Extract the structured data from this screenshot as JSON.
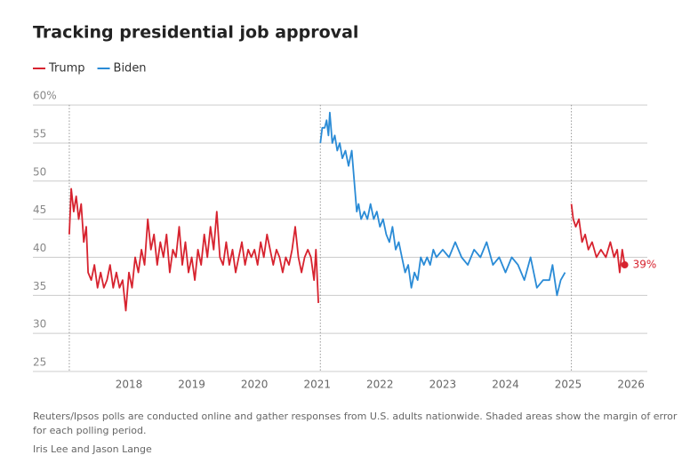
{
  "chart_data": {
    "type": "line",
    "title": "Tracking presidential job approval",
    "notes": [
      "Reuters/Ipsos polls are conducted online and gather responses from U.S. adults nationwide. Shaded areas show the margin of error",
      "for each polling period."
    ],
    "byline": "Iris Lee and Jason Lange",
    "xlim": [
      2016.47,
      2026.26
    ],
    "xticks": [
      2018,
      2019,
      2020,
      2021,
      2022,
      2023,
      2024,
      2025,
      2026
    ],
    "ylim": [
      25,
      62.7
    ],
    "yticks": [
      25,
      30,
      35,
      40,
      45,
      50,
      55,
      {
        "value": 60,
        "label": "60%"
      }
    ],
    "grid": true,
    "vlines": [
      2017.05,
      2021.05,
      2025.05
    ],
    "series": [
      {
        "name": "Trump",
        "color": "#d7232f",
        "x": [
          2017.05,
          2017.08,
          2017.12,
          2017.16,
          2017.2,
          2017.24,
          2017.28,
          2017.32,
          2017.35,
          2017.4,
          2017.45,
          2017.5,
          2017.55,
          2017.6,
          2017.65,
          2017.7,
          2017.75,
          2017.8,
          2017.85,
          2017.9,
          2017.95,
          2018.0,
          2018.05,
          2018.1,
          2018.15,
          2018.2,
          2018.25,
          2018.3,
          2018.35,
          2018.4,
          2018.45,
          2018.5,
          2018.55,
          2018.6,
          2018.65,
          2018.7,
          2018.75,
          2018.8,
          2018.85,
          2018.9,
          2018.95,
          2019.0,
          2019.05,
          2019.1,
          2019.15,
          2019.2,
          2019.25,
          2019.3,
          2019.35,
          2019.4,
          2019.45,
          2019.5,
          2019.55,
          2019.6,
          2019.65,
          2019.7,
          2019.75,
          2019.8,
          2019.85,
          2019.9,
          2019.95,
          2020.0,
          2020.05,
          2020.1,
          2020.15,
          2020.2,
          2020.25,
          2020.3,
          2020.35,
          2020.4,
          2020.45,
          2020.5,
          2020.55,
          2020.6,
          2020.65,
          2020.7,
          2020.75,
          2020.8,
          2020.85,
          2020.9,
          2020.95,
          2020.98,
          2021.02,
          null,
          2025.05,
          2025.08,
          2025.12,
          2025.17,
          2025.22,
          2025.27,
          2025.32,
          2025.38,
          2025.45,
          2025.52,
          2025.6,
          2025.67,
          2025.73,
          2025.78,
          2025.82,
          2025.86,
          2025.9
        ],
        "values": [
          43,
          49,
          46,
          48,
          45,
          47,
          42,
          44,
          38,
          37,
          39,
          36,
          38,
          36,
          37,
          39,
          36,
          38,
          36,
          37,
          33,
          38,
          36,
          40,
          38,
          41,
          39,
          45,
          41,
          43,
          39,
          42,
          40,
          43,
          38,
          41,
          40,
          44,
          39,
          42,
          38,
          40,
          37,
          41,
          39,
          43,
          40,
          44,
          41,
          46,
          40,
          39,
          42,
          39,
          41,
          38,
          40,
          42,
          39,
          41,
          40,
          41,
          39,
          42,
          40,
          43,
          41,
          39,
          41,
          40,
          38,
          40,
          39,
          41,
          44,
          40,
          38,
          40,
          41,
          40,
          37,
          41,
          34,
          null,
          47,
          45,
          44,
          45,
          42,
          43,
          41,
          42,
          40,
          41,
          40,
          42,
          40,
          41,
          38,
          41,
          39
        ]
      },
      {
        "name": "Biden",
        "color": "#2a8bd6",
        "x": [
          2021.05,
          2021.08,
          2021.12,
          2021.15,
          2021.18,
          2021.2,
          2021.24,
          2021.28,
          2021.32,
          2021.36,
          2021.4,
          2021.45,
          2021.5,
          2021.55,
          2021.6,
          2021.63,
          2021.66,
          2021.7,
          2021.75,
          2021.8,
          2021.85,
          2021.9,
          2021.95,
          2022.0,
          2022.05,
          2022.1,
          2022.15,
          2022.2,
          2022.25,
          2022.3,
          2022.35,
          2022.4,
          2022.45,
          2022.5,
          2022.55,
          2022.6,
          2022.65,
          2022.7,
          2022.75,
          2022.8,
          2022.85,
          2022.9,
          2023.0,
          2023.1,
          2023.2,
          2023.3,
          2023.4,
          2023.5,
          2023.6,
          2023.7,
          2023.8,
          2023.9,
          2024.0,
          2024.1,
          2024.2,
          2024.3,
          2024.4,
          2024.5,
          2024.6,
          2024.7,
          2024.75,
          2024.82,
          2024.88,
          2024.95
        ],
        "values": [
          55,
          57,
          57,
          58,
          56,
          59,
          55,
          56,
          54,
          55,
          53,
          54,
          52,
          54,
          49,
          46,
          47,
          45,
          46,
          45,
          47,
          45,
          46,
          44,
          45,
          43,
          42,
          44,
          41,
          42,
          40,
          38,
          39,
          36,
          38,
          37,
          40,
          39,
          40,
          39,
          41,
          40,
          41,
          40,
          42,
          40,
          39,
          41,
          40,
          42,
          39,
          40,
          38,
          40,
          39,
          37,
          40,
          36,
          37,
          37,
          39,
          35,
          37,
          38
        ]
      }
    ],
    "annotations": [
      {
        "text": "39%",
        "x": 2025.9,
        "y": 39
      }
    ]
  }
}
